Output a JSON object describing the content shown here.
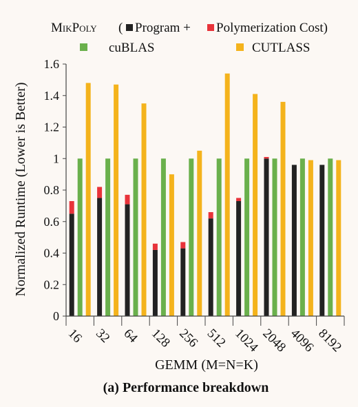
{
  "legend": {
    "mikpoly_label": "MikPoly",
    "paren_open": "(",
    "program_label": "Program +",
    "polymerization_label": "Polymerization Cost)",
    "cublas_label": "cuBLAS",
    "cutlass_label": "CUTLASS"
  },
  "caption": "(a) Performance breakdown",
  "colors": {
    "program": "#222222",
    "polymerization": "#e8333a",
    "cublas": "#6ab04c",
    "cutlass": "#f4b31c",
    "axis": "#444444",
    "background": "#fcf8f4"
  },
  "chart_data": {
    "type": "bar",
    "stacked_series": "mikpoly",
    "xlabel": "GEMM (M=N=K)",
    "ylabel": "Normalized Runtime (Lower is Better)",
    "ylim": [
      0,
      1.6
    ],
    "yticks": [
      0,
      0.2,
      0.4,
      0.6,
      0.8,
      1,
      1.2,
      1.4,
      1.6
    ],
    "ytick_labels": [
      "0",
      "0.2",
      "0.4",
      "0.6",
      "0.8",
      "1",
      "1.2",
      "1.4",
      "1.6"
    ],
    "categories": [
      "16",
      "32",
      "64",
      "128",
      "256",
      "512",
      "1024",
      "2048",
      "4096",
      "8192"
    ],
    "series": [
      {
        "name": "Program",
        "stack": "mikpoly",
        "values": [
          0.65,
          0.75,
          0.71,
          0.42,
          0.43,
          0.62,
          0.73,
          1.0,
          0.96,
          0.96
        ]
      },
      {
        "name": "Polymerization Cost",
        "stack": "mikpoly",
        "values": [
          0.08,
          0.07,
          0.06,
          0.04,
          0.04,
          0.04,
          0.02,
          0.01,
          0.0,
          0.0
        ]
      },
      {
        "name": "cuBLAS",
        "values": [
          1,
          1,
          1,
          1,
          1,
          1,
          1,
          1,
          1,
          1
        ]
      },
      {
        "name": "CUTLASS",
        "values": [
          1.48,
          1.47,
          1.35,
          0.9,
          1.05,
          1.54,
          1.41,
          1.36,
          0.99,
          0.99
        ]
      }
    ],
    "grid": false,
    "legend_position": "top"
  }
}
